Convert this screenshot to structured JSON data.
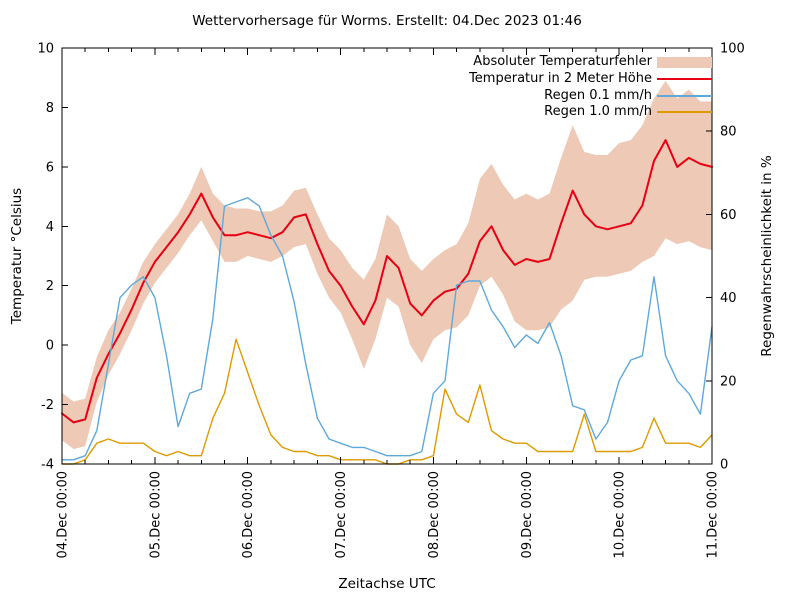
{
  "chart": {
    "title": "Wettervorhersage für Worms. Erstellt: 04.Dec 2023 01:46",
    "xlabel": "Zeitachse UTC",
    "ylabel_left": "Temperatur °Celsius",
    "ylabel_right": "Regenwahrscheinlichkeit in %",
    "colors": {
      "band": "#edc9b6",
      "temperature": "#e60012",
      "rain01": "#5fa9da",
      "rain10": "#dd9b00",
      "axis": "#000000",
      "background": "#ffffff"
    }
  },
  "chart_data": {
    "type": "line",
    "x_start": "04.Dec 00:00",
    "x_end": "11.Dec 00:00",
    "x_step_hours": 3,
    "x_tick_labels": [
      "04.Dec 00:00",
      "05.Dec 00:00",
      "06.Dec 00:00",
      "07.Dec 00:00",
      "08.Dec 00:00",
      "09.Dec 00:00",
      "10.Dec 00:00",
      "11.Dec 00:00"
    ],
    "x_minor_tick_hours": 6,
    "grid": false,
    "legend_position": "top-right-inside",
    "y_left": {
      "label": "Temperatur °Celsius",
      "min": -4,
      "max": 10,
      "ticks": [
        -4,
        -2,
        0,
        2,
        4,
        6,
        8,
        10
      ]
    },
    "y_right": {
      "label": "Regenwahrscheinlichkeit in %",
      "min": 0,
      "max": 100,
      "ticks": [
        0,
        20,
        40,
        60,
        80,
        100
      ]
    },
    "series": [
      {
        "name": "Absoluter Temperaturfehler",
        "type": "band",
        "axis": "left",
        "color": "#edc9b6",
        "upper": [
          -1.6,
          -1.9,
          -1.8,
          -0.4,
          0.5,
          1.1,
          1.9,
          2.8,
          3.4,
          3.9,
          4.4,
          5.1,
          6.0,
          5.1,
          4.7,
          4.6,
          4.6,
          4.5,
          4.5,
          4.7,
          5.2,
          5.3,
          4.4,
          3.6,
          3.2,
          2.6,
          2.2,
          2.9,
          4.4,
          4.0,
          2.9,
          2.5,
          2.9,
          3.2,
          3.4,
          4.1,
          5.6,
          6.1,
          5.4,
          4.9,
          5.1,
          4.9,
          5.1,
          6.3,
          7.4,
          6.5,
          6.4,
          6.4,
          6.8,
          6.9,
          7.4,
          8.3,
          8.9,
          8.3,
          8.6,
          8.2,
          8.2
        ],
        "lower": [
          -3.2,
          -3.5,
          -3.4,
          -1.9,
          -1.0,
          -0.3,
          0.5,
          1.4,
          2.1,
          2.6,
          3.1,
          3.7,
          4.2,
          3.5,
          2.8,
          2.8,
          3.0,
          2.9,
          2.8,
          3.0,
          3.3,
          3.4,
          2.4,
          1.6,
          1.1,
          0.2,
          -0.8,
          0.2,
          1.6,
          1.3,
          0.0,
          -0.6,
          0.2,
          0.5,
          0.6,
          1.0,
          2.0,
          2.3,
          1.7,
          0.8,
          0.5,
          0.5,
          0.6,
          1.2,
          1.5,
          2.2,
          2.3,
          2.3,
          2.4,
          2.5,
          2.8,
          3.0,
          3.6,
          3.4,
          3.5,
          3.3,
          3.2
        ]
      },
      {
        "name": "Temperatur in 2 Meter Höhe",
        "type": "line",
        "axis": "left",
        "color": "#e60012",
        "values": [
          -2.3,
          -2.6,
          -2.5,
          -1.1,
          -0.3,
          0.4,
          1.2,
          2.1,
          2.8,
          3.3,
          3.8,
          4.4,
          5.1,
          4.3,
          3.7,
          3.7,
          3.8,
          3.7,
          3.6,
          3.8,
          4.3,
          4.4,
          3.4,
          2.5,
          2.0,
          1.3,
          0.7,
          1.5,
          3.0,
          2.6,
          1.4,
          1.0,
          1.5,
          1.8,
          1.9,
          2.4,
          3.5,
          4.0,
          3.2,
          2.7,
          2.9,
          2.8,
          2.9,
          4.1,
          5.2,
          4.4,
          4.0,
          3.9,
          4.0,
          4.1,
          4.7,
          6.2,
          6.9,
          6.0,
          6.3,
          6.1,
          6.0
        ]
      },
      {
        "name": "Regen 0.1 mm/h",
        "type": "line",
        "axis": "right",
        "color": "#5fa9da",
        "values": [
          1,
          1,
          2,
          8,
          24,
          40,
          43,
          45,
          40,
          26,
          9,
          17,
          18,
          35,
          62,
          63,
          64,
          62,
          55,
          50,
          39,
          24,
          11,
          6,
          5,
          4,
          4,
          3,
          2,
          2,
          2,
          3,
          17,
          20,
          43,
          44,
          44,
          37,
          33,
          28,
          31,
          29,
          34,
          26,
          14,
          13,
          6,
          10,
          20,
          25,
          26,
          45,
          26,
          20,
          17,
          12,
          33
        ]
      },
      {
        "name": "Regen 1.0 mm/h",
        "type": "line",
        "axis": "right",
        "color": "#dd9b00",
        "values": [
          0,
          0,
          1,
          5,
          6,
          5,
          5,
          5,
          3,
          2,
          3,
          2,
          2,
          11,
          17,
          30,
          22,
          14,
          7,
          4,
          3,
          3,
          2,
          2,
          1,
          1,
          1,
          1,
          0,
          0,
          1,
          1,
          2,
          18,
          12,
          10,
          19,
          8,
          6,
          5,
          5,
          3,
          3,
          3,
          3,
          12,
          3,
          3,
          3,
          3,
          4,
          11,
          5,
          5,
          5,
          4,
          7
        ]
      }
    ]
  }
}
